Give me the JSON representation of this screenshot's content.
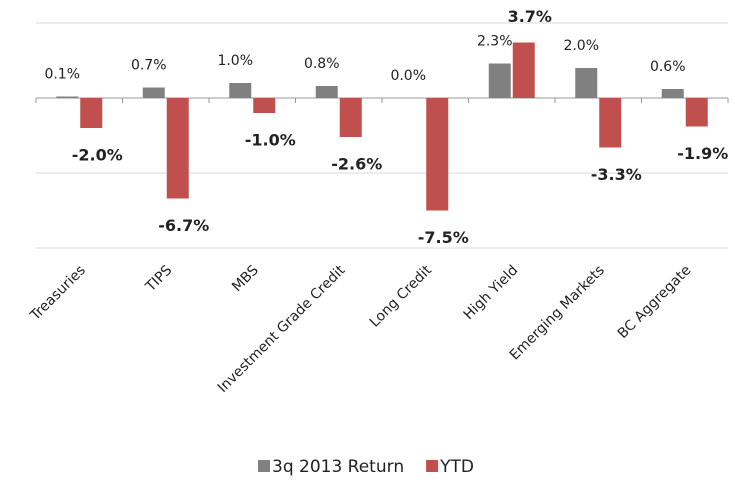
{
  "chart_data": {
    "type": "bar",
    "categories": [
      "Treasuries",
      "TIPS",
      "MBS",
      "Investment Grade Credit",
      "Long Credit",
      "High Yield",
      "Emerging Markets",
      "BC Aggregate"
    ],
    "series": [
      {
        "name": "3q 2013 Return",
        "color": "#808080",
        "values": [
          0.1,
          0.7,
          1.0,
          0.8,
          0.0,
          2.3,
          2.0,
          0.6
        ],
        "value_labels": [
          "0.1%",
          "0.7%",
          "1.0%",
          "0.8%",
          "0.0%",
          "2.3%",
          "2.0%",
          "0.6%"
        ]
      },
      {
        "name": "YTD",
        "color": "#c0504d",
        "values": [
          -2.0,
          -6.7,
          -1.0,
          -2.6,
          -7.5,
          3.7,
          -3.3,
          -1.9
        ],
        "value_labels": [
          "-2.0%",
          "-6.7%",
          "-1.0%",
          "-2.6%",
          "-7.5%",
          "3.7%",
          "-3.3%",
          "-1.9%"
        ]
      }
    ],
    "ylim": [
      -10,
      5
    ],
    "yticks": [
      -10,
      -5,
      0,
      5
    ],
    "grid": true,
    "legend": "bottom"
  }
}
